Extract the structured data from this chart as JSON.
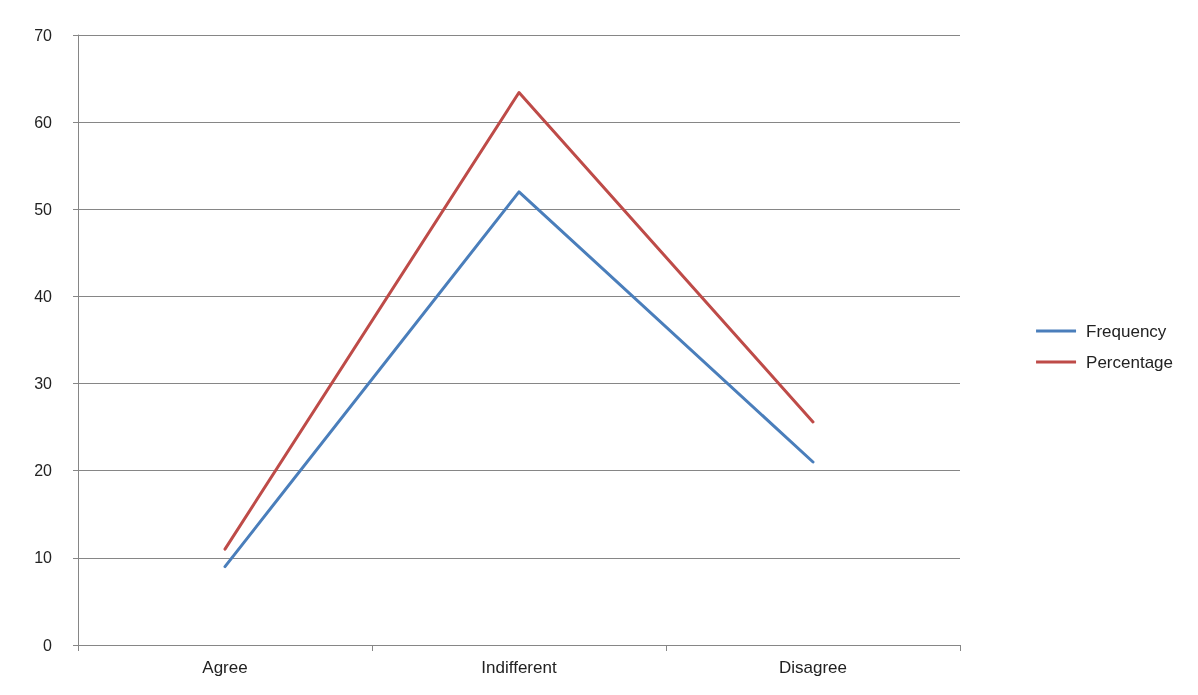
{
  "chart_data": {
    "type": "line",
    "categories": [
      "Agree",
      "Indifferent",
      "Disagree"
    ],
    "series": [
      {
        "name": "Frequency",
        "color": "#4a7ebb",
        "values": [
          9,
          52,
          21
        ]
      },
      {
        "name": "Percentage",
        "color": "#be4b48",
        "values": [
          11,
          63.4,
          25.6
        ]
      }
    ],
    "ylim": [
      0,
      70
    ],
    "yticks": [
      0,
      10,
      20,
      30,
      40,
      50,
      60,
      70
    ],
    "grid": "y",
    "legend": "right",
    "marker": "none",
    "line_style": "solid"
  }
}
